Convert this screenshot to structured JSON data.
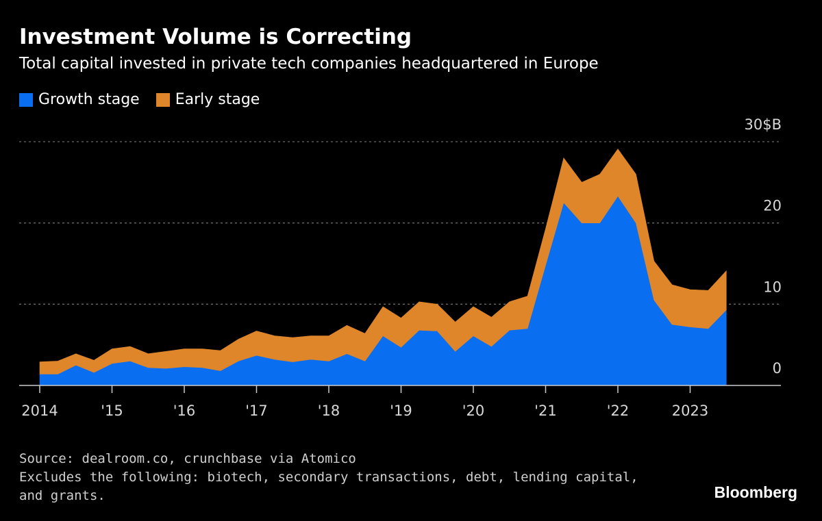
{
  "chart_data": {
    "type": "area",
    "stacked": true,
    "title": "Investment Volume is Correcting",
    "subtitle": "Total capital invested in private tech companies headquartered in Europe",
    "ylim": [
      0,
      30
    ],
    "y_ticks": [
      {
        "value": 0,
        "label": "0"
      },
      {
        "value": 10,
        "label": "10"
      },
      {
        "value": 20,
        "label": "20"
      },
      {
        "value": 30,
        "label": "30$B"
      }
    ],
    "x_labels": [
      "2014",
      "'15",
      "'16",
      "'17",
      "'18",
      "'19",
      "'20",
      "'21",
      "'22",
      "2023"
    ],
    "x_start_year": 2014,
    "quarters_per_year": 4,
    "legend_position": "top-left",
    "grid": true,
    "series": [
      {
        "name": "Growth stage",
        "color": "#0a6ef0",
        "values": [
          1.4,
          1.4,
          2.5,
          1.6,
          2.7,
          3.0,
          2.2,
          2.1,
          2.3,
          2.2,
          1.8,
          3.0,
          3.7,
          3.2,
          2.9,
          3.2,
          3.0,
          3.9,
          3.0,
          6.1,
          4.7,
          6.8,
          6.7,
          4.2,
          6.1,
          4.8,
          6.8,
          7.0,
          14.8,
          22.5,
          20.0,
          20.0,
          23.3,
          20.0,
          10.5,
          7.5,
          7.2,
          7.0,
          9.3
        ]
      },
      {
        "name": "Early stage",
        "color": "#e0862a",
        "values": [
          1.5,
          1.6,
          1.4,
          1.5,
          1.8,
          1.8,
          1.7,
          2.1,
          2.2,
          2.3,
          2.5,
          2.7,
          3.0,
          2.9,
          3.0,
          2.9,
          3.1,
          3.5,
          3.4,
          3.6,
          3.6,
          3.5,
          3.3,
          3.6,
          3.6,
          3.6,
          3.5,
          4.0,
          4.5,
          5.5,
          5.0,
          6.0,
          5.8,
          6.0,
          4.8,
          4.9,
          4.6,
          4.7,
          4.8
        ]
      }
    ],
    "source": "Source: dealroom.co, crunchbase via Atomico",
    "note_line1": "Excludes the following: biotech, secondary transactions, debt, lending capital,",
    "note_line2": "and grants.",
    "brand": "Bloomberg"
  }
}
